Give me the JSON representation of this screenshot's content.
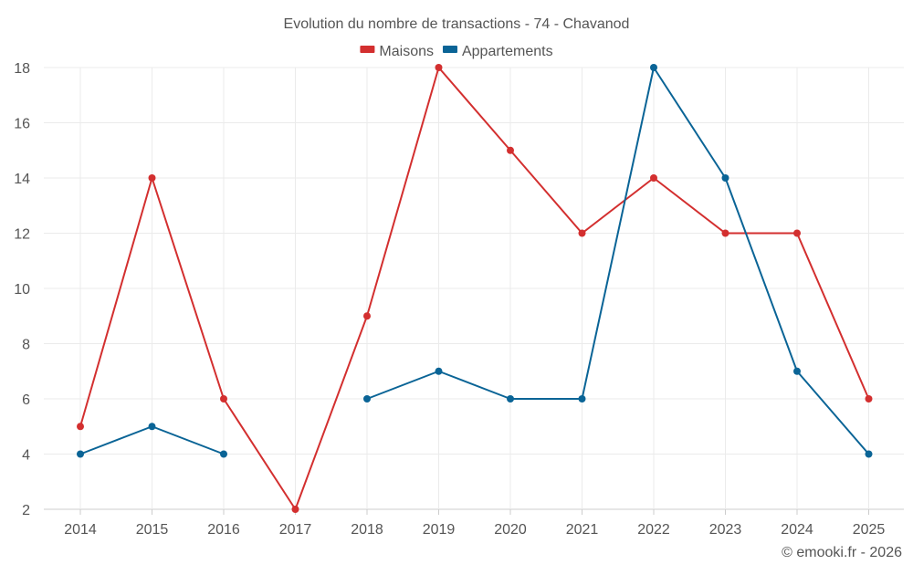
{
  "chart_data": {
    "type": "line",
    "title": "Evolution du nombre de transactions - 74 - Chavanod",
    "xlabel": "",
    "ylabel": "",
    "categories": [
      "2014",
      "2015",
      "2016",
      "2017",
      "2018",
      "2019",
      "2020",
      "2021",
      "2022",
      "2023",
      "2024",
      "2025"
    ],
    "ylim": [
      2,
      18
    ],
    "yticks": [
      2,
      4,
      6,
      8,
      10,
      12,
      14,
      16,
      18
    ],
    "grid": true,
    "legend_position": "top-center",
    "series": [
      {
        "name": "Maisons",
        "color": "#d32f2f",
        "values": [
          5,
          14,
          6,
          2,
          9,
          18,
          15,
          12,
          14,
          12,
          12,
          6
        ]
      },
      {
        "name": "Appartements",
        "color": "#0a6496",
        "values": [
          4,
          5,
          4,
          null,
          6,
          7,
          6,
          6,
          18,
          14,
          7,
          4
        ]
      }
    ]
  },
  "credit": "© emooki.fr - 2026"
}
